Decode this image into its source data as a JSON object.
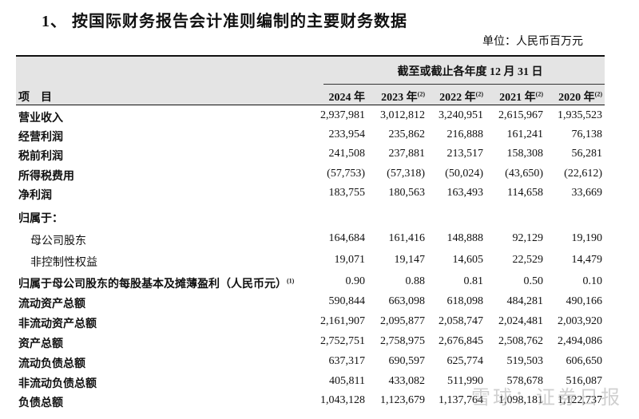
{
  "title": "1、 按国际财务报告会计准则编制的主要财务数据",
  "unit": "单位：人民币百万元",
  "table": {
    "period_header": "截至或截止各年度 12 月 31 日",
    "item_header": "项目",
    "years": [
      {
        "label": "2024 年",
        "note": ""
      },
      {
        "label": "2023 年",
        "note": "(2)"
      },
      {
        "label": "2022 年",
        "note": "(2)"
      },
      {
        "label": "2021 年",
        "note": "(2)"
      },
      {
        "label": "2020 年",
        "note": "(2)"
      }
    ],
    "rows": [
      {
        "label": "营业收入",
        "note": "",
        "indent": false,
        "values": [
          "2,937,981",
          "3,012,812",
          "3,240,951",
          "2,615,967",
          "1,935,523"
        ]
      },
      {
        "label": "经营利润",
        "note": "",
        "indent": false,
        "values": [
          "233,954",
          "235,862",
          "216,888",
          "161,241",
          "76,138"
        ]
      },
      {
        "label": "税前利润",
        "note": "",
        "indent": false,
        "values": [
          "241,508",
          "237,881",
          "213,517",
          "158,308",
          "56,281"
        ]
      },
      {
        "label": "所得税费用",
        "note": "",
        "indent": false,
        "values": [
          "(57,753)",
          "(57,318)",
          "(50,024)",
          "(43,650)",
          "(22,612)"
        ]
      },
      {
        "label": "净利润",
        "note": "",
        "indent": false,
        "values": [
          "183,755",
          "180,563",
          "163,493",
          "114,658",
          "33,669"
        ]
      },
      {
        "label": "归属于：",
        "note": "",
        "indent": false,
        "values": [
          "",
          "",
          "",
          "",
          ""
        ]
      },
      {
        "label": "母公司股东",
        "note": "",
        "indent": true,
        "values": [
          "164,684",
          "161,416",
          "148,888",
          "92,129",
          "19,190"
        ]
      },
      {
        "label": "非控制性权益",
        "note": "",
        "indent": true,
        "values": [
          "19,071",
          "19,147",
          "14,605",
          "22,529",
          "14,479"
        ]
      },
      {
        "label": "归属于母公司股东的每股基本及摊薄盈利（人民币元）",
        "note": "(1)",
        "indent": false,
        "values": [
          "0.90",
          "0.88",
          "0.81",
          "0.50",
          "0.10"
        ]
      },
      {
        "label": "流动资产总额",
        "note": "",
        "indent": false,
        "values": [
          "590,844",
          "663,098",
          "618,098",
          "484,281",
          "490,166"
        ]
      },
      {
        "label": "非流动资产总额",
        "note": "",
        "indent": false,
        "values": [
          "2,161,907",
          "2,095,877",
          "2,058,747",
          "2,024,481",
          "2,003,920"
        ]
      },
      {
        "label": "资产总额",
        "note": "",
        "indent": false,
        "values": [
          "2,752,751",
          "2,758,975",
          "2,676,845",
          "2,508,762",
          "2,494,086"
        ]
      },
      {
        "label": "流动负债总额",
        "note": "",
        "indent": false,
        "values": [
          "637,317",
          "690,597",
          "625,774",
          "519,503",
          "606,650"
        ]
      },
      {
        "label": "非流动负债总额",
        "note": "",
        "indent": false,
        "values": [
          "405,811",
          "433,082",
          "511,990",
          "578,678",
          "516,087"
        ]
      },
      {
        "label": "负债总额",
        "note": "",
        "indent": false,
        "values": [
          "1,043,128",
          "1,123,679",
          "1,137,764",
          "1,098,181",
          "1,122,737"
        ]
      }
    ]
  },
  "watermark": "雪球：证券日报"
}
